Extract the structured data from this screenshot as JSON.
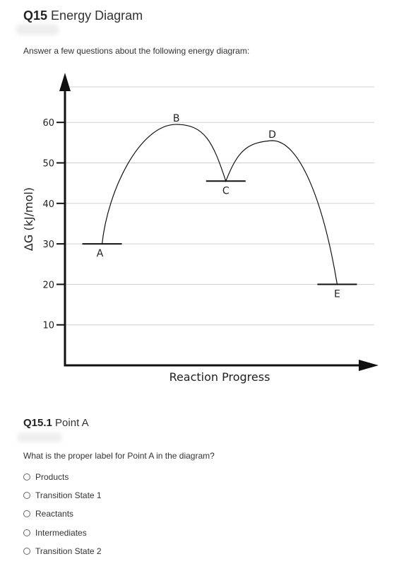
{
  "question": {
    "number": "Q15",
    "title": "Energy Diagram",
    "intro": "Answer a few questions about the following energy diagram:"
  },
  "chart_data": {
    "type": "line",
    "title": "",
    "xlabel": "Reaction Progress",
    "ylabel": "ΔG (kJ/mol)",
    "yticks": [
      10,
      20,
      30,
      40,
      50,
      60
    ],
    "ylim": [
      2,
      72
    ],
    "xlim": [
      0,
      100
    ],
    "grid": true,
    "points": [
      {
        "label": "A",
        "x": 12,
        "y": 30,
        "kind": "minimum"
      },
      {
        "label": "B",
        "x": 36,
        "y": 59.5,
        "kind": "maximum"
      },
      {
        "label": "C",
        "x": 52,
        "y": 45.5,
        "kind": "minimum"
      },
      {
        "label": "D",
        "x": 67,
        "y": 55.5,
        "kind": "maximum"
      },
      {
        "label": "E",
        "x": 88,
        "y": 20,
        "kind": "minimum"
      }
    ]
  },
  "subquestion": {
    "number": "Q15.1",
    "title": "Point A",
    "prompt": "What is the proper label for Point A in the diagram?",
    "options": [
      "Products",
      "Transition State 1",
      "Reactants",
      "Intermediates",
      "Transition State 2"
    ]
  }
}
